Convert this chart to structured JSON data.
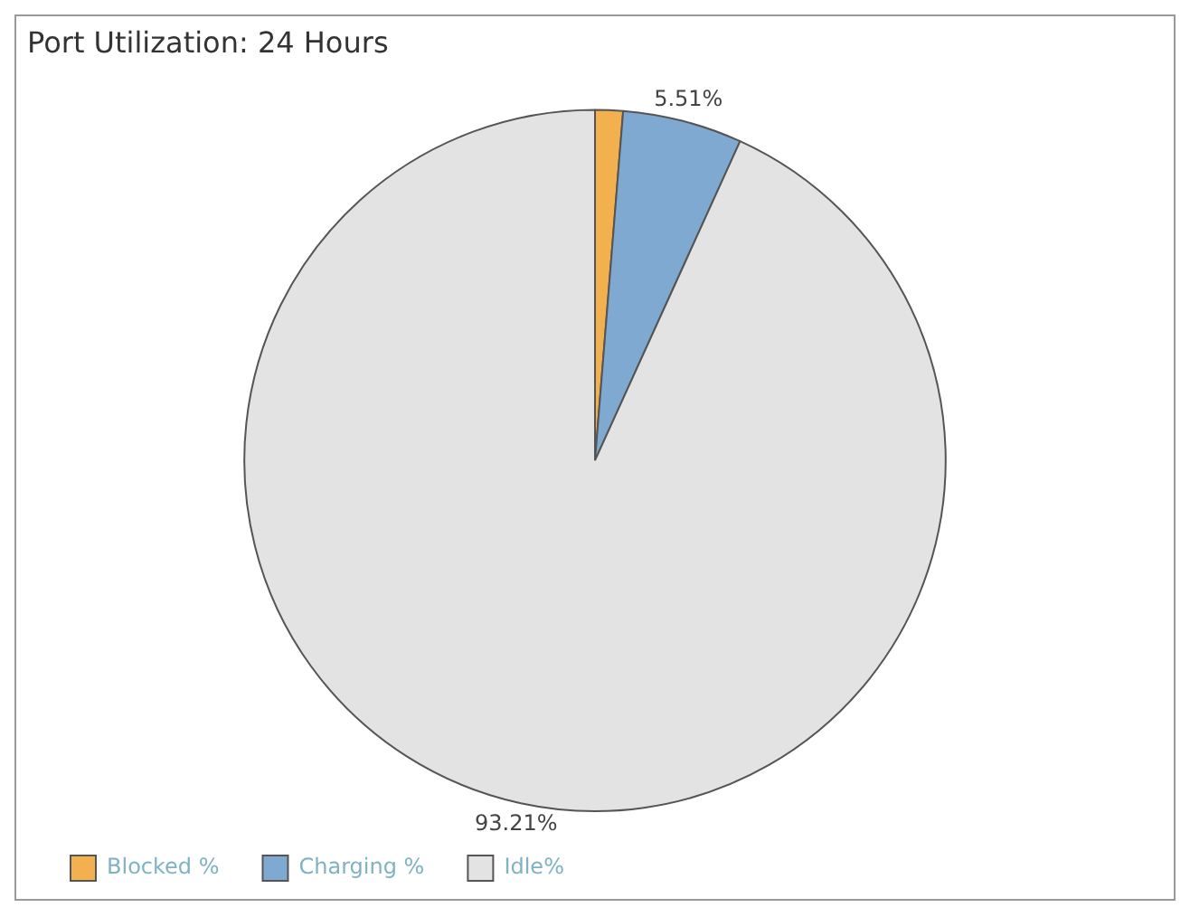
{
  "chart_data": {
    "type": "pie",
    "title": "Port Utilization: 24 Hours",
    "categories": [
      "Blocked %",
      "Charging %",
      "Idle%"
    ],
    "values": [
      1.28,
      5.51,
      93.21
    ],
    "colors": [
      "#f2b04f",
      "#7fa9d0",
      "#e3e3e3"
    ],
    "value_labels": [
      null,
      "5.51%",
      "93.21%"
    ],
    "legend": "bottom left"
  }
}
